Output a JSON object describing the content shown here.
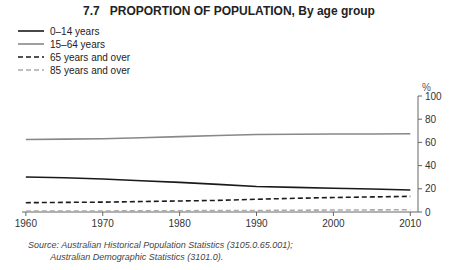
{
  "chart_data": {
    "type": "line",
    "title": "7.7   PROPORTION OF POPULATION, By age group",
    "x": [
      1960,
      1965,
      1970,
      1975,
      1980,
      1985,
      1990,
      1995,
      2000,
      2005,
      2010
    ],
    "series": [
      {
        "name": "0–14 years",
        "color": "#1a1a1a",
        "line_style": "solid",
        "values": [
          30.2,
          29.5,
          28.5,
          27.0,
          25.5,
          23.8,
          22.0,
          21.2,
          20.5,
          19.8,
          19.0
        ]
      },
      {
        "name": "15–64 years",
        "color": "#888888",
        "line_style": "solid",
        "values": [
          62.5,
          62.8,
          63.2,
          64.0,
          65.0,
          66.0,
          66.8,
          67.0,
          67.2,
          67.3,
          67.5
        ]
      },
      {
        "name": "65 years and over",
        "color": "#1a1a1a",
        "line_style": "dashed",
        "values": [
          8.0,
          8.3,
          8.5,
          9.0,
          9.5,
          10.0,
          11.0,
          11.8,
          12.5,
          13.0,
          13.5
        ]
      },
      {
        "name": "85 years and over",
        "color": "#aaaaaa",
        "line_style": "dashed",
        "values": [
          0.7,
          0.8,
          0.9,
          1.0,
          1.1,
          1.2,
          1.3,
          1.5,
          1.7,
          1.8,
          2.0
        ]
      }
    ],
    "xlim": [
      1959.5,
      2011
    ],
    "ylim": [
      0,
      100
    ],
    "xticks": [
      1960,
      1970,
      1980,
      1990,
      2000,
      2010
    ],
    "yticks": [
      0,
      20,
      40,
      60,
      80,
      100
    ],
    "annotations": [
      "%"
    ],
    "source": "Source: Australian Historical Population Statistics (3105.0.65.001);\n         Australian Demographic Statistics (3101.0).",
    "legend": "top",
    "grid": false
  }
}
